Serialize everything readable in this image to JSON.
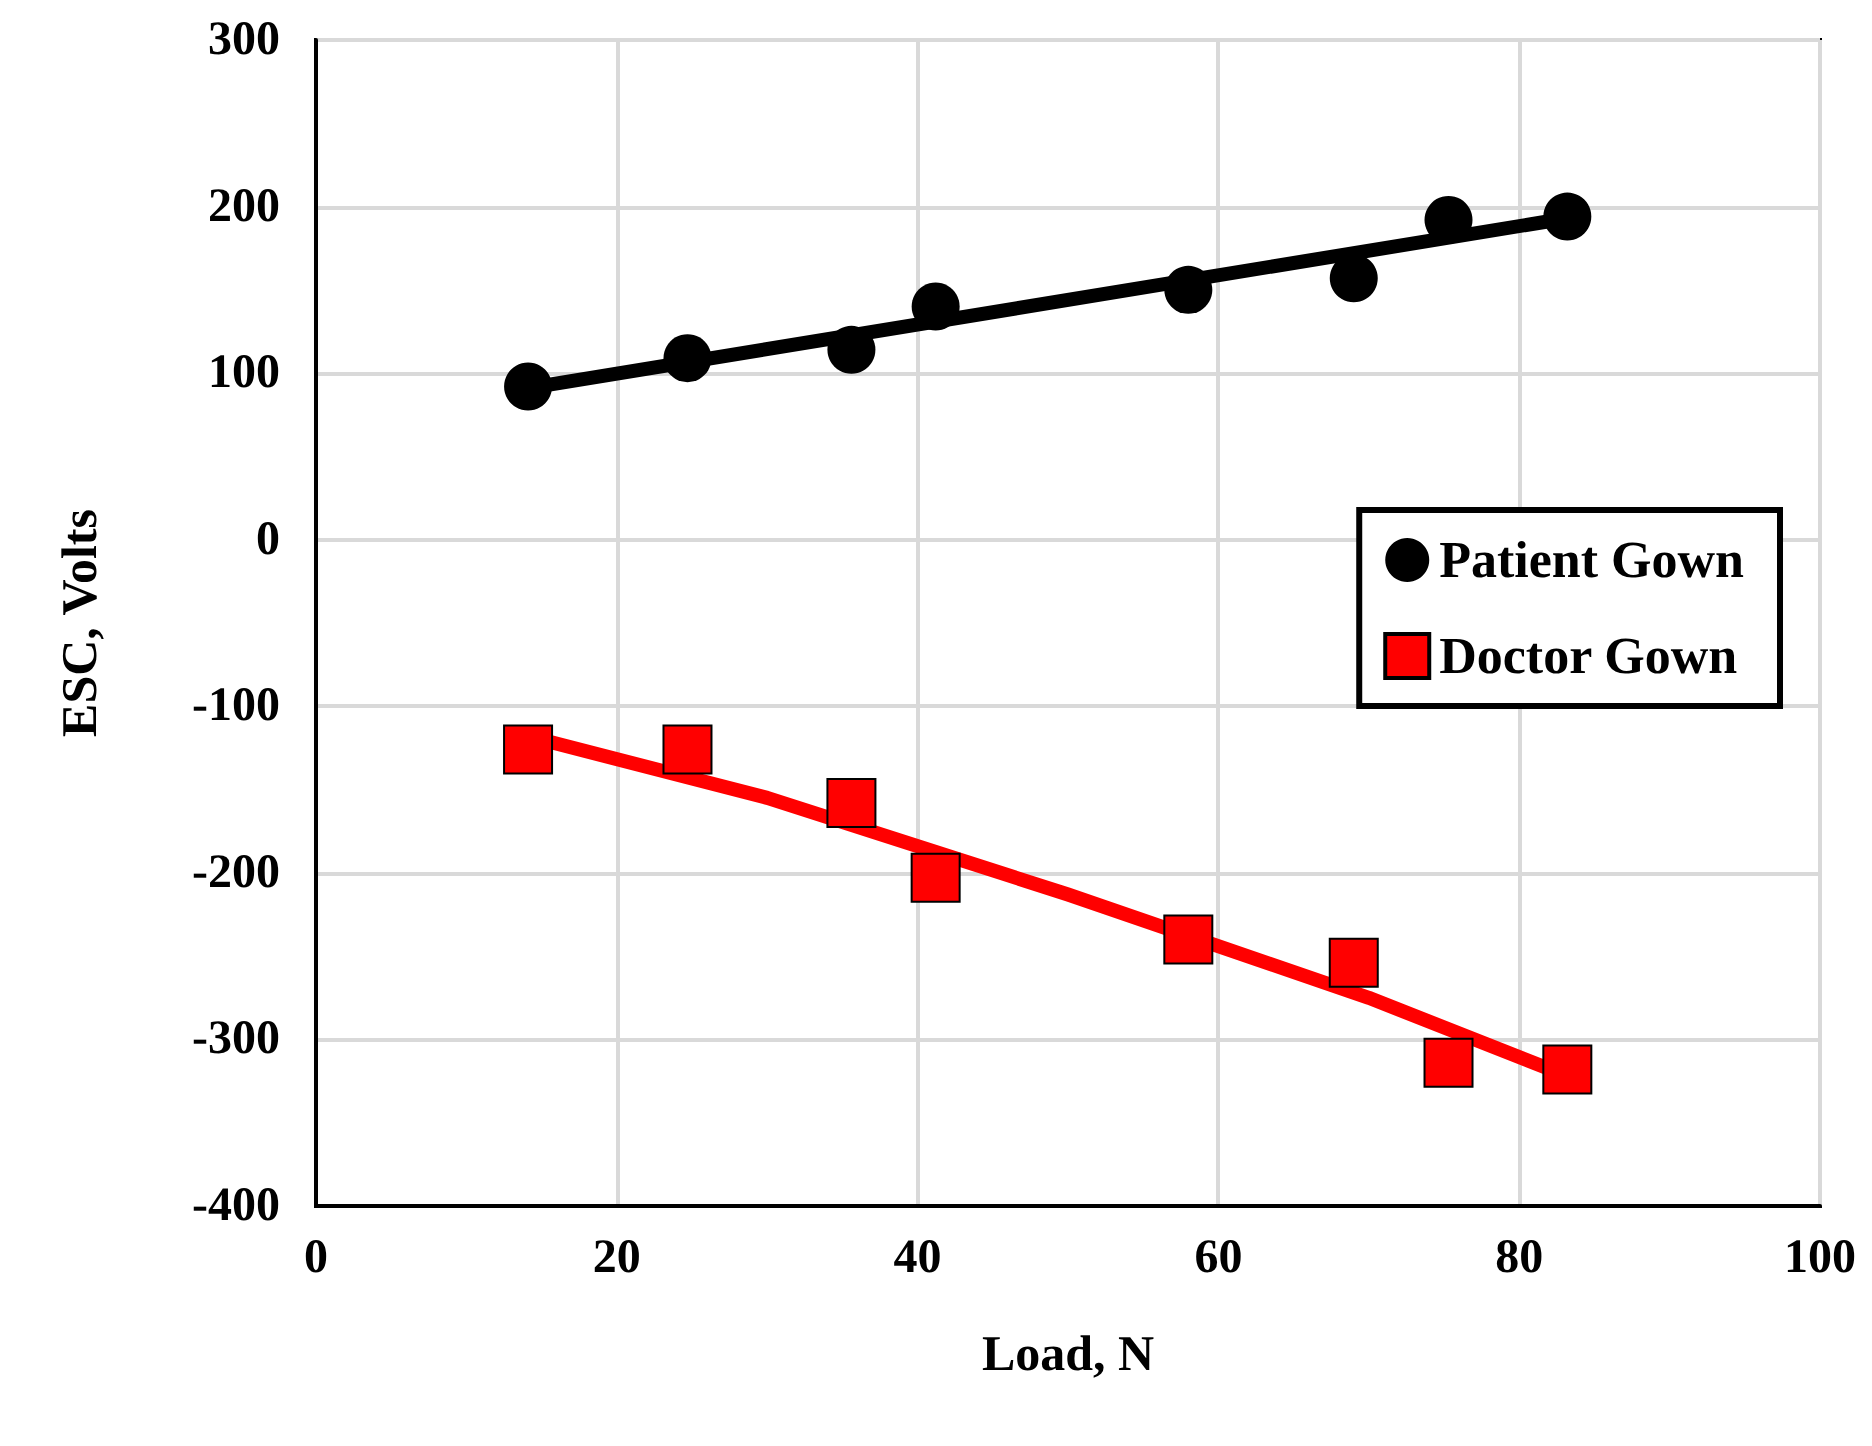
{
  "chart_data": {
    "type": "scatter",
    "xlabel": "Load, N",
    "ylabel": "ESC, Volts",
    "xlim": [
      0,
      100
    ],
    "xticks": [
      0,
      20,
      40,
      60,
      80,
      100
    ],
    "ylim": [
      -400,
      300
    ],
    "yticks": [
      -400,
      -300,
      -200,
      -100,
      0,
      100,
      200,
      300
    ],
    "grid": true,
    "legend": "right",
    "series": [
      {
        "name": "Patient Gown",
        "marker": "circle",
        "color": "#000000",
        "x": [
          14.1,
          24.7,
          35.6,
          41.2,
          58,
          69,
          75.3,
          83.2
        ],
        "values": [
          92,
          109,
          114,
          140,
          150,
          157,
          192,
          194
        ]
      },
      {
        "name": "Doctor Gown",
        "marker": "square",
        "color": "#ff0000",
        "x": [
          14.1,
          24.7,
          35.6,
          41.2,
          58,
          69,
          75.3,
          83.2
        ],
        "values": [
          -126,
          -126,
          -158,
          -203,
          -240,
          -254,
          -314,
          -318
        ]
      },
      {
        "type": "line",
        "marker": "none",
        "color": "#000000",
        "x": [
          14.1,
          83.2
        ],
        "values": [
          91,
          193
        ]
      },
      {
        "type": "line",
        "marker": "none",
        "color": "#ff0000",
        "x": [
          14.1,
          30,
          50,
          70,
          83.2
        ],
        "values": [
          -118,
          -155,
          -213,
          -275,
          -322
        ]
      }
    ]
  }
}
